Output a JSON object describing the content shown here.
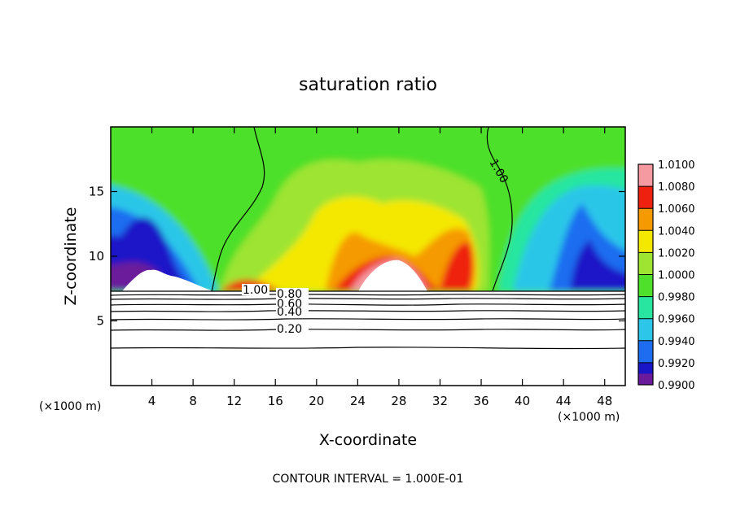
{
  "chart_data": {
    "type": "heatmap",
    "title": "saturation ratio",
    "xlabel": "X-coordinate",
    "ylabel": "Z-coordinate",
    "x_unit_left": "(×1000 m)",
    "x_unit_right": "(×1000 m)",
    "xlim": [
      0,
      50
    ],
    "ylim": [
      0,
      20
    ],
    "xticks": [
      4,
      8,
      12,
      16,
      20,
      24,
      28,
      32,
      36,
      40,
      44,
      48
    ],
    "xtick_labels": [
      "4",
      "8",
      "12",
      "16",
      "20",
      "24",
      "28",
      "32",
      "36",
      "40",
      "44",
      "48"
    ],
    "yticks": [
      5,
      10,
      15
    ],
    "ytick_labels": [
      "5",
      "10",
      "15"
    ],
    "colorbar": {
      "levels": [
        0.99,
        0.992,
        0.994,
        0.996,
        0.998,
        1.0,
        1.002,
        1.004,
        1.006,
        1.008,
        1.01
      ],
      "labels": [
        "0.9900",
        "0.9920",
        "0.9940",
        "0.9960",
        "0.9980",
        "1.0000",
        "1.0020",
        "1.0040",
        "1.0060",
        "1.0080",
        "1.0100"
      ],
      "colors": [
        "#6a1a9a",
        "#1a16c8",
        "#1e6df0",
        "#2cc6e8",
        "#28e6a0",
        "#4ee02a",
        "#9ee430",
        "#f4e800",
        "#f59a00",
        "#ee2010",
        "#f49aa0"
      ]
    },
    "contour_line_labels": [
      {
        "text": "1.00",
        "x": 13.0,
        "z": 7.2
      },
      {
        "text": "1.00",
        "x": 38.5,
        "z": 16.5
      },
      {
        "text": "0.80",
        "x": 17.4,
        "z": 7.0
      },
      {
        "text": "0.60",
        "x": 17.4,
        "z": 6.6
      },
      {
        "text": "0.40",
        "x": 17.4,
        "z": 5.6
      },
      {
        "text": "0.20",
        "x": 17.4,
        "z": 4.4
      }
    ],
    "contour_interval_text": "CONTOUR INTERVAL = 1.000E-01"
  }
}
